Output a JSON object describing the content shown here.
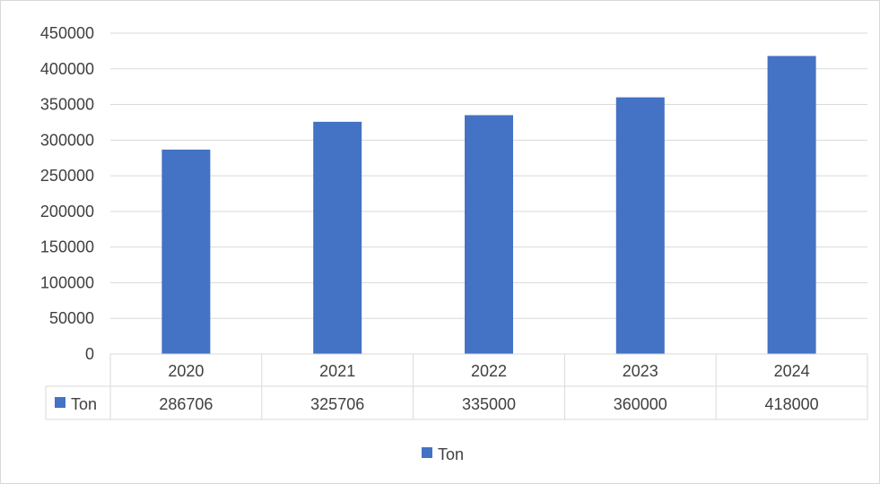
{
  "chart_data": {
    "type": "bar",
    "categories": [
      "2020",
      "2021",
      "2022",
      "2023",
      "2024"
    ],
    "series": [
      {
        "name": "Ton",
        "values": [
          286706,
          325706,
          335000,
          360000,
          418000
        ],
        "color": "#4472c4"
      }
    ],
    "ylim": [
      0,
      450000
    ],
    "y_ticks": [
      "0",
      "50000",
      "100000",
      "150000",
      "200000",
      "250000",
      "300000",
      "350000",
      "400000",
      "450000"
    ],
    "grid": true,
    "data_table": true,
    "legend_position": "bottom"
  }
}
